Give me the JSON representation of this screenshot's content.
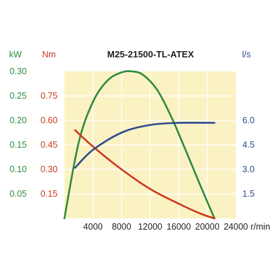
{
  "chart_data": {
    "type": "line",
    "title": "M25-21500-TL-ATEX",
    "x_axis": {
      "unit": "r/min",
      "range": [
        0,
        24000
      ],
      "ticks": [
        4000,
        8000,
        12000,
        16000,
        20000,
        24000
      ],
      "tick_labels": [
        "4000",
        "8000",
        "12000",
        "16000",
        "20000",
        "24000"
      ]
    },
    "y_axes": [
      {
        "id": "power",
        "unit": "kW",
        "side": "left-outer",
        "range": [
          0,
          0.3
        ],
        "ticks": [
          0.05,
          0.1,
          0.15,
          0.2,
          0.25,
          0.3
        ],
        "tick_labels": [
          "0.05",
          "0.10",
          "0.15",
          "0.20",
          "0.25",
          "0.30"
        ],
        "color": "#2e8b3e"
      },
      {
        "id": "torque",
        "unit": "Nm",
        "side": "left-inner",
        "range": [
          0,
          0.9
        ],
        "ticks": [
          0.15,
          0.3,
          0.45,
          0.6,
          0.75
        ],
        "tick_labels": [
          "0.15",
          "0.30",
          "0.45",
          "0.60",
          "0.75"
        ],
        "color": "#cc3a1e"
      },
      {
        "id": "flow",
        "unit": "l/s",
        "side": "right",
        "range": [
          0,
          9.0
        ],
        "ticks": [
          1.5,
          3.0,
          4.5,
          6.0
        ],
        "tick_labels": [
          "1.5",
          "3.0",
          "4.5",
          "6.0"
        ],
        "color": "#2f4a8c"
      }
    ],
    "series": [
      {
        "axis": "power",
        "color": "#2e8b3e",
        "x": [
          0,
          2000,
          4000,
          6000,
          8000,
          9500,
          11000,
          13000,
          15000,
          17000,
          19000,
          21000
        ],
        "y": [
          0.0,
          0.155,
          0.238,
          0.281,
          0.298,
          0.3,
          0.293,
          0.262,
          0.206,
          0.138,
          0.068,
          0.0
        ]
      },
      {
        "axis": "torque",
        "color": "#cc3a1e",
        "x": [
          1500,
          4000,
          8000,
          12000,
          16000,
          19000,
          21000
        ],
        "y": [
          0.54,
          0.44,
          0.3,
          0.18,
          0.09,
          0.03,
          0.0
        ]
      },
      {
        "axis": "flow",
        "color": "#2f4a8c",
        "x": [
          1500,
          4000,
          8000,
          12000,
          16000,
          21000
        ],
        "y": [
          3.1,
          4.2,
          5.25,
          5.72,
          5.85,
          5.85
        ]
      }
    ],
    "grid": true,
    "plot_background": "#fbf2c4",
    "grid_color": "#ffffff"
  }
}
